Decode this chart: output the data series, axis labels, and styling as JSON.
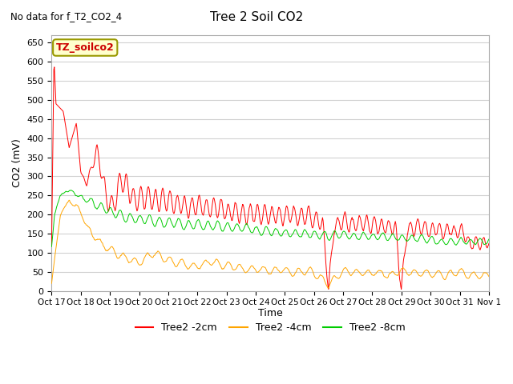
{
  "title": "Tree 2 Soil CO2",
  "subtitle": "No data for f_T2_CO2_4",
  "ylabel": "CO2 (mV)",
  "xlabel": "Time",
  "legend_label": "TZ_soilco2",
  "ylim": [
    0,
    670
  ],
  "yticks": [
    0,
    50,
    100,
    150,
    200,
    250,
    300,
    350,
    400,
    450,
    500,
    550,
    600,
    650
  ],
  "xtick_labels": [
    "Oct 17",
    "Oct 18",
    "Oct 19",
    "Oct 20",
    "Oct 21",
    "Oct 22",
    "Oct 23",
    "Oct 24",
    "Oct 25",
    "Oct 26",
    "Oct 27",
    "Oct 28",
    "Oct 29",
    "Oct 30",
    "Oct 31",
    "Nov 1"
  ],
  "line_red": "#ff0000",
  "line_orange": "#ffa500",
  "line_green": "#00cc00",
  "bg_color": "#ffffff",
  "grid_color": "#d0d0d0",
  "legend_series": [
    "Tree2 -2cm",
    "Tree2 -4cm",
    "Tree2 -8cm"
  ],
  "figsize": [
    6.4,
    4.8
  ],
  "dpi": 100
}
